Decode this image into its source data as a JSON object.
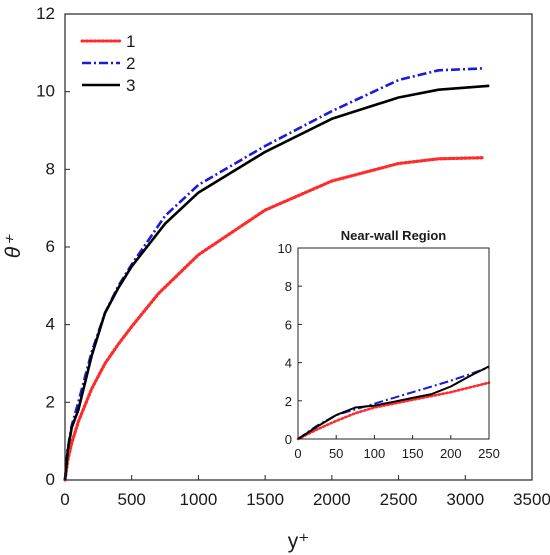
{
  "chart_data": [
    {
      "type": "line",
      "title": "",
      "xlabel": "y⁺",
      "ylabel": "θ⁺",
      "xlim": [
        0,
        3500
      ],
      "ylim": [
        0,
        12
      ],
      "xticks": [
        0,
        500,
        1000,
        1500,
        2000,
        2500,
        3000,
        3500
      ],
      "yticks": [
        0,
        2,
        4,
        6,
        8,
        10,
        12
      ],
      "xtick_labels": [
        "0",
        "500",
        "1000",
        "1500",
        "2000",
        "2500",
        "3000",
        "3500"
      ],
      "ytick_labels": [
        "0",
        "2",
        "4",
        "6",
        "8",
        "10",
        "12"
      ],
      "grid": false,
      "legend_position": "top-left",
      "series": [
        {
          "name": "1",
          "color": "#ff2a2a",
          "style": "dotted",
          "x": [
            0,
            20,
            50,
            100,
            200,
            300,
            400,
            500,
            700,
            1000,
            1500,
            2000,
            2500,
            2800,
            3130
          ],
          "y": [
            0,
            0.5,
            0.95,
            1.5,
            2.35,
            3.0,
            3.5,
            3.95,
            4.8,
            5.8,
            6.95,
            7.7,
            8.15,
            8.27,
            8.3
          ]
        },
        {
          "name": "2",
          "color": "#1a1adc",
          "style": "dash-dot",
          "x": [
            0,
            20,
            50,
            100,
            200,
            300,
            400,
            500,
            750,
            1000,
            1500,
            2000,
            2500,
            2800,
            3130
          ],
          "y": [
            0,
            0.8,
            1.4,
            2.0,
            3.3,
            4.3,
            5.0,
            5.55,
            6.8,
            7.6,
            8.6,
            9.5,
            10.3,
            10.55,
            10.6
          ]
        },
        {
          "name": "3",
          "color": "#000000",
          "style": "solid",
          "x": [
            0,
            20,
            50,
            100,
            200,
            300,
            400,
            500,
            750,
            1000,
            1500,
            2000,
            2500,
            2800,
            3180
          ],
          "y": [
            0,
            0.75,
            1.35,
            1.8,
            3.2,
            4.3,
            4.95,
            5.5,
            6.6,
            7.4,
            8.45,
            9.3,
            9.85,
            10.05,
            10.15
          ]
        }
      ]
    },
    {
      "type": "line",
      "title": "Near-wall Region",
      "xlabel": "",
      "ylabel": "",
      "xlim": [
        0,
        250
      ],
      "ylim": [
        0,
        10
      ],
      "xticks": [
        0,
        50,
        100,
        150,
        200,
        250
      ],
      "yticks": [
        0,
        2,
        4,
        6,
        8,
        10
      ],
      "xtick_labels": [
        "0",
        "50",
        "100",
        "150",
        "200",
        "250"
      ],
      "ytick_labels": [
        "0",
        "2",
        "4",
        "6",
        "8",
        "10"
      ],
      "grid": false,
      "series": [
        {
          "color": "#ff2a2a",
          "style": "dotted",
          "x": [
            0,
            25,
            50,
            75,
            100,
            125,
            150,
            175,
            200,
            225,
            250
          ],
          "y": [
            0,
            0.5,
            0.95,
            1.35,
            1.65,
            1.85,
            2.05,
            2.25,
            2.45,
            2.7,
            2.95
          ]
        },
        {
          "color": "#1a1adc",
          "style": "dash-dot",
          "x": [
            0,
            25,
            50,
            75,
            100,
            125,
            150,
            175,
            200,
            225,
            250
          ],
          "y": [
            0,
            0.7,
            1.25,
            1.55,
            1.85,
            2.15,
            2.45,
            2.75,
            3.05,
            3.4,
            3.75
          ]
        },
        {
          "color": "#000000",
          "style": "solid",
          "x": [
            0,
            25,
            50,
            75,
            100,
            125,
            150,
            175,
            200,
            225,
            250
          ],
          "y": [
            0,
            0.65,
            1.25,
            1.65,
            1.75,
            1.95,
            2.15,
            2.35,
            2.75,
            3.3,
            3.8
          ]
        }
      ]
    }
  ]
}
